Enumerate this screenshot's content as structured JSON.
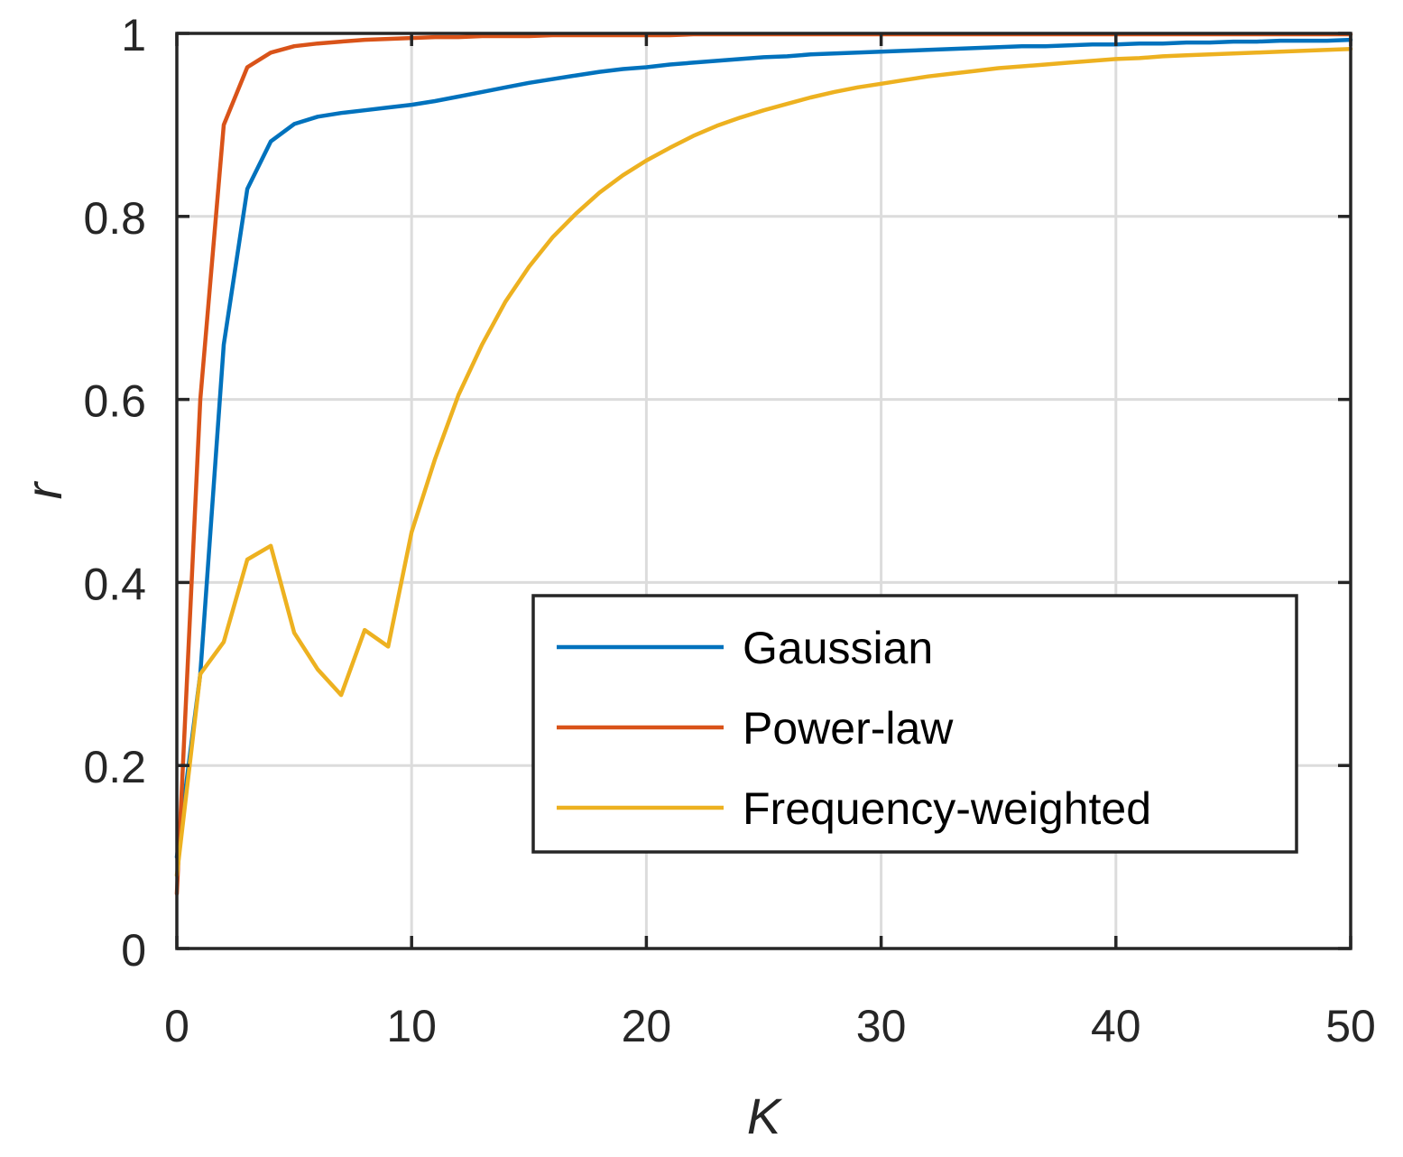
{
  "chart_data": {
    "type": "line",
    "title": "",
    "xlabel": "K",
    "ylabel": "r",
    "xlim": [
      0,
      50
    ],
    "ylim": [
      0,
      1
    ],
    "xticks": [
      0,
      10,
      20,
      30,
      40,
      50
    ],
    "yticks": [
      0,
      0.2,
      0.4,
      0.6,
      0.8,
      1
    ],
    "xtick_labels": [
      "0",
      "10",
      "20",
      "30",
      "40",
      "50"
    ],
    "ytick_labels": [
      "0",
      "0.2",
      "0.4",
      "0.6",
      "0.8",
      "1"
    ],
    "grid": true,
    "legend_position": "bottom-right",
    "series": [
      {
        "name": "Gaussian",
        "color": "#0072bd",
        "x": [
          0,
          1,
          2,
          3,
          4,
          5,
          6,
          7,
          8,
          9,
          10,
          11,
          12,
          13,
          14,
          15,
          16,
          17,
          18,
          19,
          20,
          21,
          22,
          23,
          24,
          25,
          26,
          27,
          28,
          29,
          30,
          31,
          32,
          33,
          34,
          35,
          36,
          37,
          38,
          39,
          40,
          41,
          42,
          43,
          44,
          45,
          46,
          47,
          48,
          49,
          50
        ],
        "y": [
          0.1,
          0.3,
          0.66,
          0.83,
          0.882,
          0.901,
          0.909,
          0.913,
          0.916,
          0.919,
          0.922,
          0.926,
          0.931,
          0.936,
          0.941,
          0.946,
          0.95,
          0.954,
          0.958,
          0.961,
          0.963,
          0.966,
          0.968,
          0.97,
          0.972,
          0.974,
          0.975,
          0.977,
          0.978,
          0.979,
          0.98,
          0.981,
          0.982,
          0.983,
          0.984,
          0.985,
          0.986,
          0.986,
          0.987,
          0.988,
          0.988,
          0.989,
          0.989,
          0.99,
          0.99,
          0.991,
          0.991,
          0.992,
          0.992,
          0.992,
          0.993
        ]
      },
      {
        "name": "Power-law",
        "color": "#d95319",
        "x": [
          0,
          1,
          2,
          3,
          4,
          5,
          6,
          7,
          8,
          9,
          10,
          11,
          12,
          13,
          14,
          15,
          16,
          17,
          18,
          19,
          20,
          21,
          22,
          23,
          24,
          25,
          26,
          27,
          28,
          29,
          30,
          31,
          32,
          33,
          34,
          35,
          36,
          37,
          38,
          39,
          40,
          41,
          42,
          43,
          44,
          45,
          46,
          47,
          48,
          49,
          50
        ],
        "y": [
          0.06,
          0.6,
          0.9,
          0.963,
          0.979,
          0.986,
          0.989,
          0.991,
          0.993,
          0.994,
          0.995,
          0.996,
          0.996,
          0.997,
          0.997,
          0.997,
          0.998,
          0.998,
          0.998,
          0.998,
          0.998,
          0.998,
          0.999,
          0.999,
          0.999,
          0.999,
          0.999,
          0.999,
          0.999,
          0.999,
          0.999,
          0.999,
          0.999,
          0.999,
          0.999,
          0.999,
          0.999,
          0.999,
          0.999,
          0.999,
          0.999,
          0.999,
          0.999,
          0.999,
          0.999,
          0.999,
          0.999,
          0.999,
          0.999,
          0.999,
          0.999
        ]
      },
      {
        "name": "Frequency-weighted",
        "color": "#edb120",
        "x": [
          0,
          1,
          2,
          3,
          4,
          5,
          6,
          7,
          8,
          9,
          10,
          11,
          12,
          13,
          14,
          15,
          16,
          17,
          18,
          19,
          20,
          21,
          22,
          23,
          24,
          25,
          26,
          27,
          28,
          29,
          30,
          31,
          32,
          33,
          34,
          35,
          36,
          37,
          38,
          39,
          40,
          41,
          42,
          43,
          44,
          45,
          46,
          47,
          48,
          49,
          50
        ],
        "y": [
          0.08,
          0.3,
          0.335,
          0.425,
          0.44,
          0.345,
          0.305,
          0.277,
          0.348,
          0.33,
          0.455,
          0.535,
          0.605,
          0.66,
          0.707,
          0.745,
          0.777,
          0.803,
          0.826,
          0.845,
          0.861,
          0.875,
          0.888,
          0.899,
          0.908,
          0.916,
          0.923,
          0.93,
          0.936,
          0.941,
          0.945,
          0.949,
          0.953,
          0.956,
          0.959,
          0.962,
          0.964,
          0.966,
          0.968,
          0.97,
          0.972,
          0.973,
          0.975,
          0.976,
          0.977,
          0.978,
          0.979,
          0.98,
          0.981,
          0.982,
          0.983
        ]
      }
    ]
  }
}
